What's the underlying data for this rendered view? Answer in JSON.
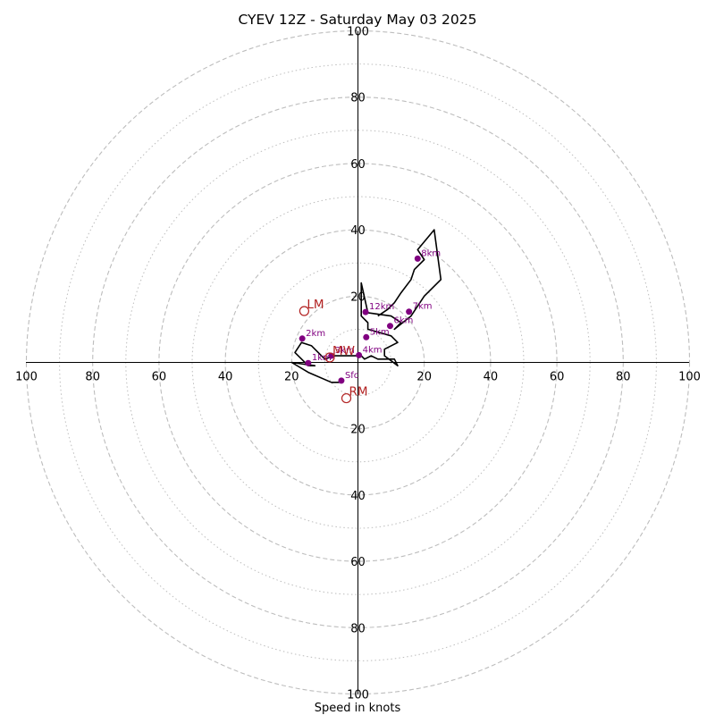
{
  "chart_data": {
    "type": "scatter",
    "subtype": "hodograph",
    "title": "CYEV 12Z - Saturday May 03 2025",
    "xlabel": "Speed in knots",
    "ylabel": "",
    "xlim": [
      -100,
      100
    ],
    "ylim": [
      -100,
      100
    ],
    "grid": {
      "dashed_rings": [
        20,
        40,
        60,
        80,
        100
      ],
      "dotted_rings": [
        10,
        30,
        50,
        70,
        90
      ]
    },
    "x_ticks": [
      {
        "value": -100,
        "label": "100"
      },
      {
        "value": -80,
        "label": "80"
      },
      {
        "value": -60,
        "label": "60"
      },
      {
        "value": -40,
        "label": "40"
      },
      {
        "value": -20,
        "label": "20"
      },
      {
        "value": 20,
        "label": "20"
      },
      {
        "value": 40,
        "label": "40"
      },
      {
        "value": 60,
        "label": "60"
      },
      {
        "value": 80,
        "label": "80"
      },
      {
        "value": 100,
        "label": "100"
      }
    ],
    "y_ticks": [
      {
        "value": 100,
        "label": "100"
      },
      {
        "value": 80,
        "label": "80"
      },
      {
        "value": 60,
        "label": "60"
      },
      {
        "value": 40,
        "label": "40"
      },
      {
        "value": 20,
        "label": "20"
      },
      {
        "value": -20,
        "label": "20"
      },
      {
        "value": -40,
        "label": "40"
      },
      {
        "value": -60,
        "label": "60"
      },
      {
        "value": -80,
        "label": "80"
      },
      {
        "value": -100,
        "label": "100"
      }
    ],
    "series": [
      {
        "line_color": "#000000",
        "x": [
          -5,
          -8,
          -15,
          -20,
          -13,
          -15,
          -19,
          -17,
          -14,
          -10,
          -7,
          -5,
          1,
          2,
          4,
          6,
          11,
          12,
          8,
          8,
          12,
          10,
          3,
          3,
          1,
          1,
          3,
          10,
          13,
          11,
          16,
          20,
          25,
          23,
          18,
          20,
          17,
          16,
          13,
          11,
          9,
          6
        ],
        "y": [
          -6,
          -6,
          -3,
          0,
          -1,
          -1,
          3,
          6,
          5,
          1,
          2,
          2,
          2,
          1,
          2,
          1,
          1,
          -1,
          2,
          4,
          6,
          8,
          10,
          12,
          14,
          24,
          15,
          14,
          12,
          10,
          14,
          20,
          25,
          40,
          34,
          31,
          28,
          25,
          21,
          18,
          16,
          14
        ]
      }
    ],
    "height_markers": [
      {
        "label": "Sfc",
        "x": -5,
        "y": -5.5
      },
      {
        "label": "1km",
        "x": -15,
        "y": -0.2
      },
      {
        "label": "2km",
        "x": -16.8,
        "y": 7.2
      },
      {
        "label": "3km",
        "x": -8,
        "y": 2
      },
      {
        "label": "4km",
        "x": 0.3,
        "y": 2.2
      },
      {
        "label": "5km",
        "x": 2.5,
        "y": 7.6
      },
      {
        "label": "6km",
        "x": 9.7,
        "y": 11
      },
      {
        "label": "7km",
        "x": 15.4,
        "y": 15.3
      },
      {
        "label": "8km",
        "x": 18,
        "y": 31.3
      },
      {
        "label": "12km",
        "x": 2.3,
        "y": 15.2
      }
    ],
    "motion_markers": [
      {
        "label": "LM",
        "x": -16.2,
        "y": 15.5,
        "color": "#b22222"
      },
      {
        "label": "MW",
        "x": -8.5,
        "y": 1.5,
        "color": "#b22222"
      },
      {
        "label": "RM",
        "x": -3.5,
        "y": -10.8,
        "color": "#b22222"
      }
    ],
    "colors": {
      "hodograph_line": "#000000",
      "height_markers": "#800080",
      "motion_markers": "#b22222",
      "grid": "#bdbdbd",
      "axes": "#000000"
    }
  }
}
